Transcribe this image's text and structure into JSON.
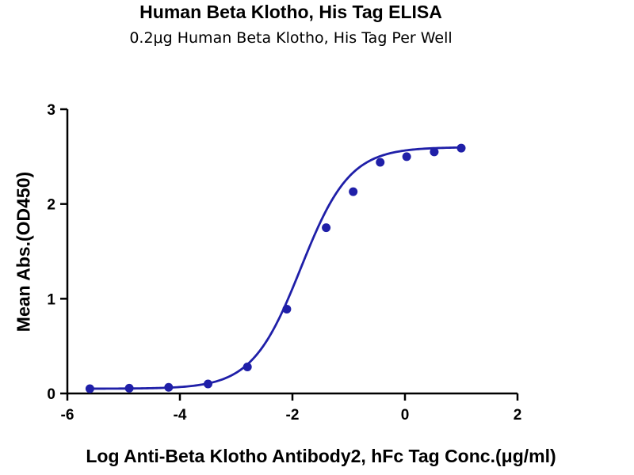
{
  "chart_data": {
    "type": "scatter",
    "title": "Human Beta Klotho, His Tag ELISA",
    "subtitle": "0.2μg Human Beta Klotho, His Tag Per Well",
    "xlabel": "Log Anti-Beta Klotho Antibody2, hFc Tag Conc.(μg/ml)",
    "ylabel": "Mean Abs.(OD450)",
    "xlim": [
      -6,
      2
    ],
    "ylim": [
      0,
      3
    ],
    "xticks": [
      "-6",
      "-4",
      "-2",
      "0",
      "2"
    ],
    "yticks": [
      "0",
      "1",
      "2",
      "3"
    ],
    "grid": false,
    "colors": {
      "series": "#1f1fa8"
    },
    "series": [
      {
        "points": [
          {
            "x": -5.6,
            "y": 0.05
          },
          {
            "x": -4.9,
            "y": 0.055
          },
          {
            "x": -4.2,
            "y": 0.065
          },
          {
            "x": -3.5,
            "y": 0.1
          },
          {
            "x": -2.8,
            "y": 0.28
          },
          {
            "x": -2.1,
            "y": 0.89
          },
          {
            "x": -1.4,
            "y": 1.75
          },
          {
            "x": -0.92,
            "y": 2.13
          },
          {
            "x": -0.44,
            "y": 2.44
          },
          {
            "x": 0.03,
            "y": 2.5
          },
          {
            "x": 0.52,
            "y": 2.55
          },
          {
            "x": 1.0,
            "y": 2.59
          }
        ],
        "fit": {
          "bottom": 0.05,
          "top": 2.6,
          "logEC50": -1.85,
          "hillslope": 1.0
        }
      }
    ]
  }
}
